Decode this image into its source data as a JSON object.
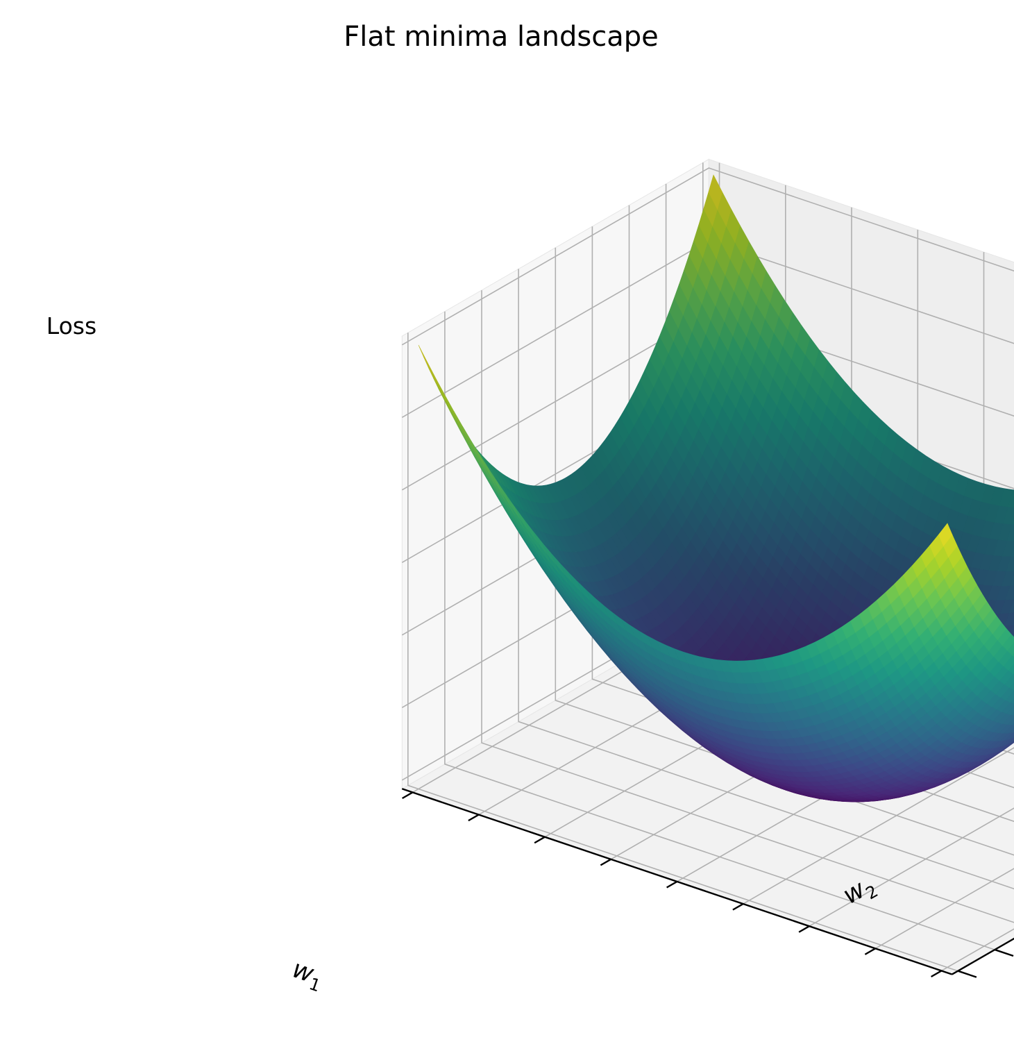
{
  "chart_data": {
    "type": "surface",
    "title": "Flat minima landscape",
    "xlabel": "w",
    "xlabel_subscript": "1",
    "ylabel": "w",
    "ylabel_subscript": "2",
    "zlabel": "Loss",
    "function": "loss = w1^2 + w2^2",
    "x_range": [
      -1,
      1
    ],
    "y_range": [
      -1,
      1
    ],
    "z_range": [
      0,
      2
    ],
    "grid_resolution": 60,
    "tick_labels_shown": false,
    "grid": true,
    "colormap": "viridis",
    "colormap_stops": [
      "#440154",
      "#482878",
      "#3e4989",
      "#31688e",
      "#26828e",
      "#1f9e89",
      "#35b779",
      "#6ece58",
      "#b5de2b",
      "#fde725"
    ]
  }
}
